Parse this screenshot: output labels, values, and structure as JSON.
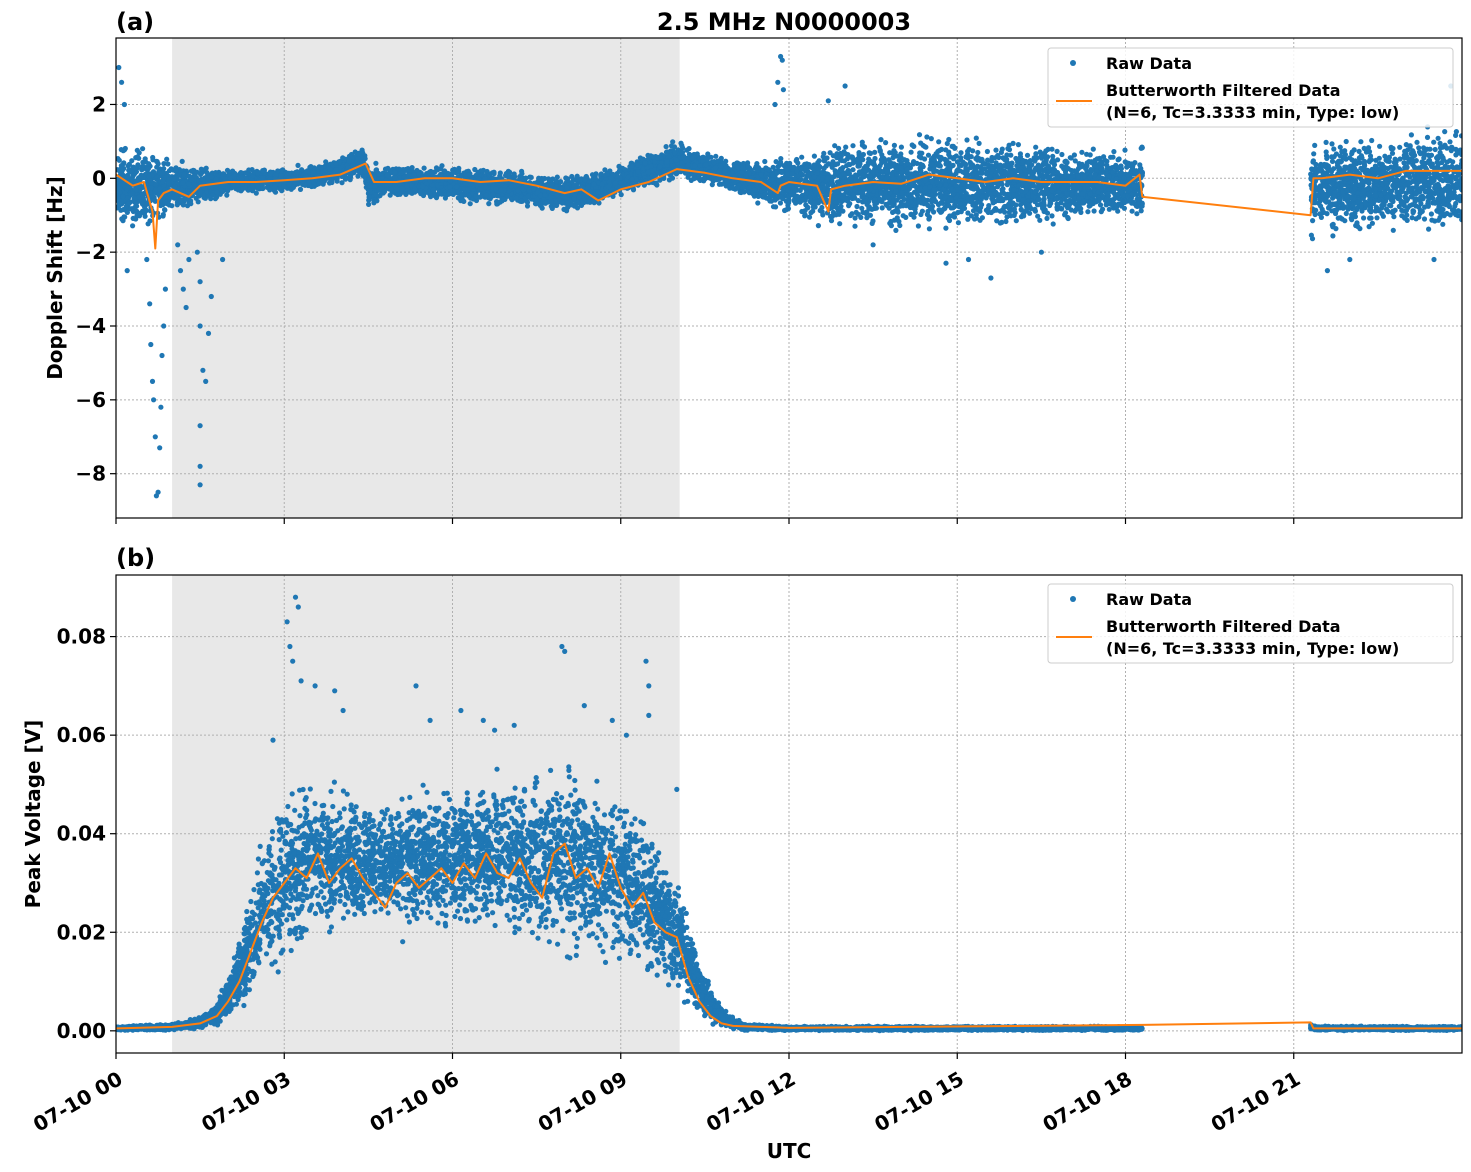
{
  "chart_data": [
    {
      "type": "scatter",
      "panel_label": "(a)",
      "title": "2.5 MHz N0000003",
      "ylabel": "Doppler Shift [Hz]",
      "xlabel": "",
      "xlim": [
        0,
        24
      ],
      "ylim": [
        -9.2,
        3.8
      ],
      "yticks": [
        2,
        0,
        -2,
        -4,
        -6,
        -8
      ],
      "ytick_labels": [
        "2",
        "0",
        "−2",
        "−4",
        "−6",
        "−8"
      ],
      "xticks": [
        0,
        3,
        6,
        9,
        12,
        15,
        18,
        21
      ],
      "grid": true,
      "shaded_region": {
        "x0": 1.0,
        "x1": 10.05,
        "color": "#e8e8e8"
      },
      "data_gap": [
        18.3,
        21.3
      ],
      "legend": {
        "placement": "top-right",
        "entries": [
          {
            "marker": "dot",
            "color": "#1f77b4",
            "label": "Raw Data"
          },
          {
            "marker": "line",
            "color": "#ff7f0e",
            "label": "Butterworth Filtered Data",
            "label2": "(N=6, Tc=3.3333 min, Type: low)"
          }
        ]
      },
      "series": [
        {
          "name": "Raw Data",
          "color": "#1f77b4",
          "envelope": [
            [
              0.0,
              -1.6,
              1.2
            ],
            [
              0.5,
              -1.5,
              1.0
            ],
            [
              0.9,
              -1.2,
              0.7
            ],
            [
              1.5,
              -0.8,
              0.4
            ],
            [
              2.0,
              -0.5,
              0.3
            ],
            [
              3.0,
              -0.4,
              0.3
            ],
            [
              4.0,
              -0.2,
              0.6
            ],
            [
              4.4,
              0.0,
              1.0
            ],
            [
              4.5,
              -0.8,
              0.5
            ],
            [
              5.0,
              -0.6,
              0.4
            ],
            [
              6.0,
              -0.7,
              0.4
            ],
            [
              7.0,
              -0.8,
              0.3
            ],
            [
              8.0,
              -1.0,
              0.1
            ],
            [
              9.0,
              -0.5,
              0.4
            ],
            [
              9.5,
              -0.3,
              0.8
            ],
            [
              10.0,
              -0.1,
              1.1
            ],
            [
              11.0,
              -0.4,
              0.5
            ],
            [
              12.0,
              -1.2,
              0.8
            ],
            [
              13.0,
              -1.5,
              1.2
            ],
            [
              15.0,
              -1.6,
              1.3
            ],
            [
              17.0,
              -1.4,
              1.0
            ],
            [
              18.3,
              -1.2,
              1.0
            ]
          ],
          "envelope2": [
            [
              21.3,
              -1.8,
              1.3
            ],
            [
              22.0,
              -1.7,
              1.2
            ],
            [
              23.0,
              -1.6,
              1.4
            ],
            [
              24.0,
              -1.7,
              1.5
            ]
          ],
          "outliers": [
            [
              0.05,
              3.0
            ],
            [
              0.1,
              2.6
            ],
            [
              0.15,
              2.0
            ],
            [
              0.2,
              -2.5
            ],
            [
              0.55,
              -2.2
            ],
            [
              0.6,
              -3.4
            ],
            [
              0.62,
              -4.5
            ],
            [
              0.65,
              -5.5
            ],
            [
              0.67,
              -6.0
            ],
            [
              0.7,
              -7.0
            ],
            [
              0.72,
              -8.6
            ],
            [
              0.75,
              -8.5
            ],
            [
              0.78,
              -7.3
            ],
            [
              0.8,
              -6.2
            ],
            [
              0.82,
              -4.8
            ],
            [
              0.85,
              -4.0
            ],
            [
              0.88,
              -3.0
            ],
            [
              1.1,
              -1.8
            ],
            [
              1.15,
              -2.5
            ],
            [
              1.2,
              -3.0
            ],
            [
              1.25,
              -3.5
            ],
            [
              1.3,
              -2.2
            ],
            [
              1.45,
              -2.0
            ],
            [
              1.5,
              -2.8
            ],
            [
              1.5,
              -4.0
            ],
            [
              1.5,
              -6.7
            ],
            [
              1.5,
              -7.8
            ],
            [
              1.5,
              -8.3
            ],
            [
              1.55,
              -5.2
            ],
            [
              1.6,
              -5.5
            ],
            [
              1.65,
              -4.2
            ],
            [
              1.7,
              -3.2
            ],
            [
              1.9,
              -2.2
            ],
            [
              11.85,
              3.3
            ],
            [
              11.88,
              3.2
            ],
            [
              11.8,
              2.6
            ],
            [
              11.75,
              2.0
            ],
            [
              11.9,
              2.4
            ],
            [
              13.0,
              2.5
            ],
            [
              12.7,
              2.1
            ],
            [
              13.5,
              -1.8
            ],
            [
              14.8,
              -2.3
            ],
            [
              15.6,
              -2.7
            ],
            [
              15.2,
              -2.2
            ],
            [
              16.5,
              -2.0
            ],
            [
              21.6,
              -2.5
            ],
            [
              22.0,
              -2.2
            ],
            [
              23.5,
              -2.2
            ],
            [
              23.8,
              2.5
            ]
          ]
        },
        {
          "name": "Butterworth Filtered Data",
          "color": "#ff7f0e",
          "x": [
            0,
            0.3,
            0.5,
            0.65,
            0.7,
            0.75,
            0.85,
            1.0,
            1.3,
            1.5,
            2.0,
            2.5,
            3.0,
            3.5,
            4.0,
            4.3,
            4.45,
            4.6,
            5.0,
            5.5,
            6.0,
            6.5,
            7.0,
            7.5,
            8.0,
            8.3,
            8.6,
            9.0,
            9.5,
            10.0,
            10.5,
            11.0,
            11.5,
            11.8,
            11.85,
            12.0,
            12.5,
            12.7,
            12.75,
            13.0,
            13.5,
            14.0,
            14.5,
            15.0,
            15.5,
            16.0,
            16.5,
            17.0,
            17.5,
            18.0,
            18.25,
            18.3,
            21.3,
            21.35,
            21.5,
            22.0,
            22.5,
            23.0,
            23.5,
            24.0
          ],
          "y": [
            0.1,
            -0.2,
            -0.1,
            -0.9,
            -1.9,
            -0.6,
            -0.4,
            -0.3,
            -0.5,
            -0.2,
            -0.1,
            -0.1,
            -0.05,
            0.0,
            0.1,
            0.3,
            0.4,
            -0.1,
            -0.1,
            0.0,
            0.0,
            -0.1,
            -0.05,
            -0.2,
            -0.4,
            -0.3,
            -0.6,
            -0.3,
            -0.1,
            0.25,
            0.15,
            0.0,
            -0.1,
            -0.4,
            -0.2,
            -0.1,
            -0.2,
            -0.9,
            -0.3,
            -0.2,
            -0.1,
            -0.15,
            0.1,
            0.0,
            -0.1,
            0.0,
            -0.1,
            -0.1,
            -0.1,
            -0.2,
            0.1,
            -0.5,
            -1.0,
            0.0,
            0.0,
            0.1,
            0.0,
            0.2,
            0.2,
            0.2
          ]
        }
      ]
    },
    {
      "type": "scatter",
      "panel_label": "(b)",
      "title": "",
      "ylabel": "Peak Voltage [V]",
      "xlabel": "UTC",
      "xlim": [
        0,
        24
      ],
      "ylim": [
        -0.0045,
        0.0925
      ],
      "yticks": [
        0.0,
        0.02,
        0.04,
        0.06,
        0.08
      ],
      "ytick_labels": [
        "0.00",
        "0.02",
        "0.04",
        "0.06",
        "0.08"
      ],
      "xticks": [
        0,
        3,
        6,
        9,
        12,
        15,
        18,
        21
      ],
      "xtick_labels": [
        "07-10 00",
        "07-10 03",
        "07-10 06",
        "07-10 09",
        "07-10 12",
        "07-10 15",
        "07-10 18",
        "07-10 21"
      ],
      "grid": true,
      "shaded_region": {
        "x0": 1.0,
        "x1": 10.05,
        "color": "#e8e8e8"
      },
      "data_gap": [
        18.3,
        21.3
      ],
      "legend": {
        "placement": "top-right",
        "entries": [
          {
            "marker": "dot",
            "color": "#1f77b4",
            "label": "Raw Data"
          },
          {
            "marker": "line",
            "color": "#ff7f0e",
            "label": "Butterworth Filtered Data",
            "label2": "(N=6, Tc=3.3333 min, Type: low)"
          }
        ]
      },
      "series": [
        {
          "name": "Raw Data",
          "color": "#1f77b4",
          "envelope": [
            [
              0.0,
              0.0,
              0.001
            ],
            [
              1.0,
              0.0,
              0.0015
            ],
            [
              1.5,
              0.0003,
              0.003
            ],
            [
              1.8,
              0.001,
              0.006
            ],
            [
              2.0,
              0.002,
              0.012
            ],
            [
              2.3,
              0.004,
              0.025
            ],
            [
              2.6,
              0.008,
              0.04
            ],
            [
              3.0,
              0.012,
              0.05
            ],
            [
              3.5,
              0.015,
              0.055
            ],
            [
              4.0,
              0.018,
              0.052
            ],
            [
              4.5,
              0.02,
              0.048
            ],
            [
              5.0,
              0.017,
              0.05
            ],
            [
              5.5,
              0.018,
              0.052
            ],
            [
              6.0,
              0.016,
              0.055
            ],
            [
              6.5,
              0.015,
              0.054
            ],
            [
              7.0,
              0.016,
              0.055
            ],
            [
              7.5,
              0.015,
              0.053
            ],
            [
              8.0,
              0.012,
              0.058
            ],
            [
              8.5,
              0.012,
              0.054
            ],
            [
              9.0,
              0.01,
              0.052
            ],
            [
              9.5,
              0.008,
              0.045
            ],
            [
              10.0,
              0.005,
              0.035
            ],
            [
              10.4,
              0.002,
              0.015
            ],
            [
              10.8,
              0.0005,
              0.005
            ],
            [
              11.2,
              0.0,
              0.0015
            ],
            [
              12.0,
              0.0,
              0.001
            ],
            [
              18.3,
              0.0,
              0.001
            ]
          ],
          "envelope2": [
            [
              21.3,
              0.0,
              0.0015
            ],
            [
              21.4,
              0.0,
              0.001
            ],
            [
              24.0,
              0.0,
              0.001
            ]
          ],
          "outliers": [
            [
              2.8,
              0.059
            ],
            [
              3.05,
              0.083
            ],
            [
              3.1,
              0.078
            ],
            [
              3.2,
              0.088
            ],
            [
              3.25,
              0.086
            ],
            [
              3.15,
              0.075
            ],
            [
              3.3,
              0.071
            ],
            [
              3.55,
              0.07
            ],
            [
              3.9,
              0.069
            ],
            [
              4.05,
              0.065
            ],
            [
              5.35,
              0.07
            ],
            [
              5.6,
              0.063
            ],
            [
              6.15,
              0.065
            ],
            [
              6.55,
              0.063
            ],
            [
              6.75,
              0.061
            ],
            [
              7.1,
              0.062
            ],
            [
              7.95,
              0.078
            ],
            [
              8.0,
              0.077
            ],
            [
              8.35,
              0.066
            ],
            [
              8.85,
              0.063
            ],
            [
              9.45,
              0.075
            ],
            [
              9.5,
              0.07
            ],
            [
              9.5,
              0.064
            ],
            [
              10.0,
              0.049
            ],
            [
              9.1,
              0.06
            ]
          ]
        },
        {
          "name": "Butterworth Filtered Data",
          "color": "#ff7f0e",
          "x": [
            0,
            1.0,
            1.5,
            1.8,
            2.0,
            2.2,
            2.4,
            2.6,
            2.8,
            3.0,
            3.2,
            3.4,
            3.6,
            3.8,
            4.0,
            4.2,
            4.4,
            4.6,
            4.8,
            5.0,
            5.2,
            5.4,
            5.6,
            5.8,
            6.0,
            6.2,
            6.4,
            6.6,
            6.8,
            7.0,
            7.2,
            7.4,
            7.6,
            7.8,
            8.0,
            8.2,
            8.4,
            8.6,
            8.8,
            9.0,
            9.2,
            9.4,
            9.6,
            9.8,
            10.0,
            10.2,
            10.4,
            10.6,
            10.8,
            11.0,
            11.5,
            12.0,
            18.3,
            21.3,
            21.35,
            22.0,
            24.0
          ],
          "y": [
            0.0005,
            0.0008,
            0.0015,
            0.003,
            0.006,
            0.01,
            0.016,
            0.022,
            0.027,
            0.03,
            0.033,
            0.031,
            0.036,
            0.03,
            0.033,
            0.035,
            0.031,
            0.028,
            0.025,
            0.03,
            0.032,
            0.029,
            0.031,
            0.033,
            0.03,
            0.034,
            0.031,
            0.036,
            0.032,
            0.031,
            0.035,
            0.03,
            0.027,
            0.036,
            0.038,
            0.031,
            0.033,
            0.029,
            0.036,
            0.029,
            0.025,
            0.028,
            0.022,
            0.02,
            0.019,
            0.011,
            0.006,
            0.003,
            0.0015,
            0.001,
            0.0008,
            0.0006,
            0.0012,
            0.0017,
            0.0005,
            0.0005,
            0.0005
          ]
        }
      ]
    }
  ]
}
